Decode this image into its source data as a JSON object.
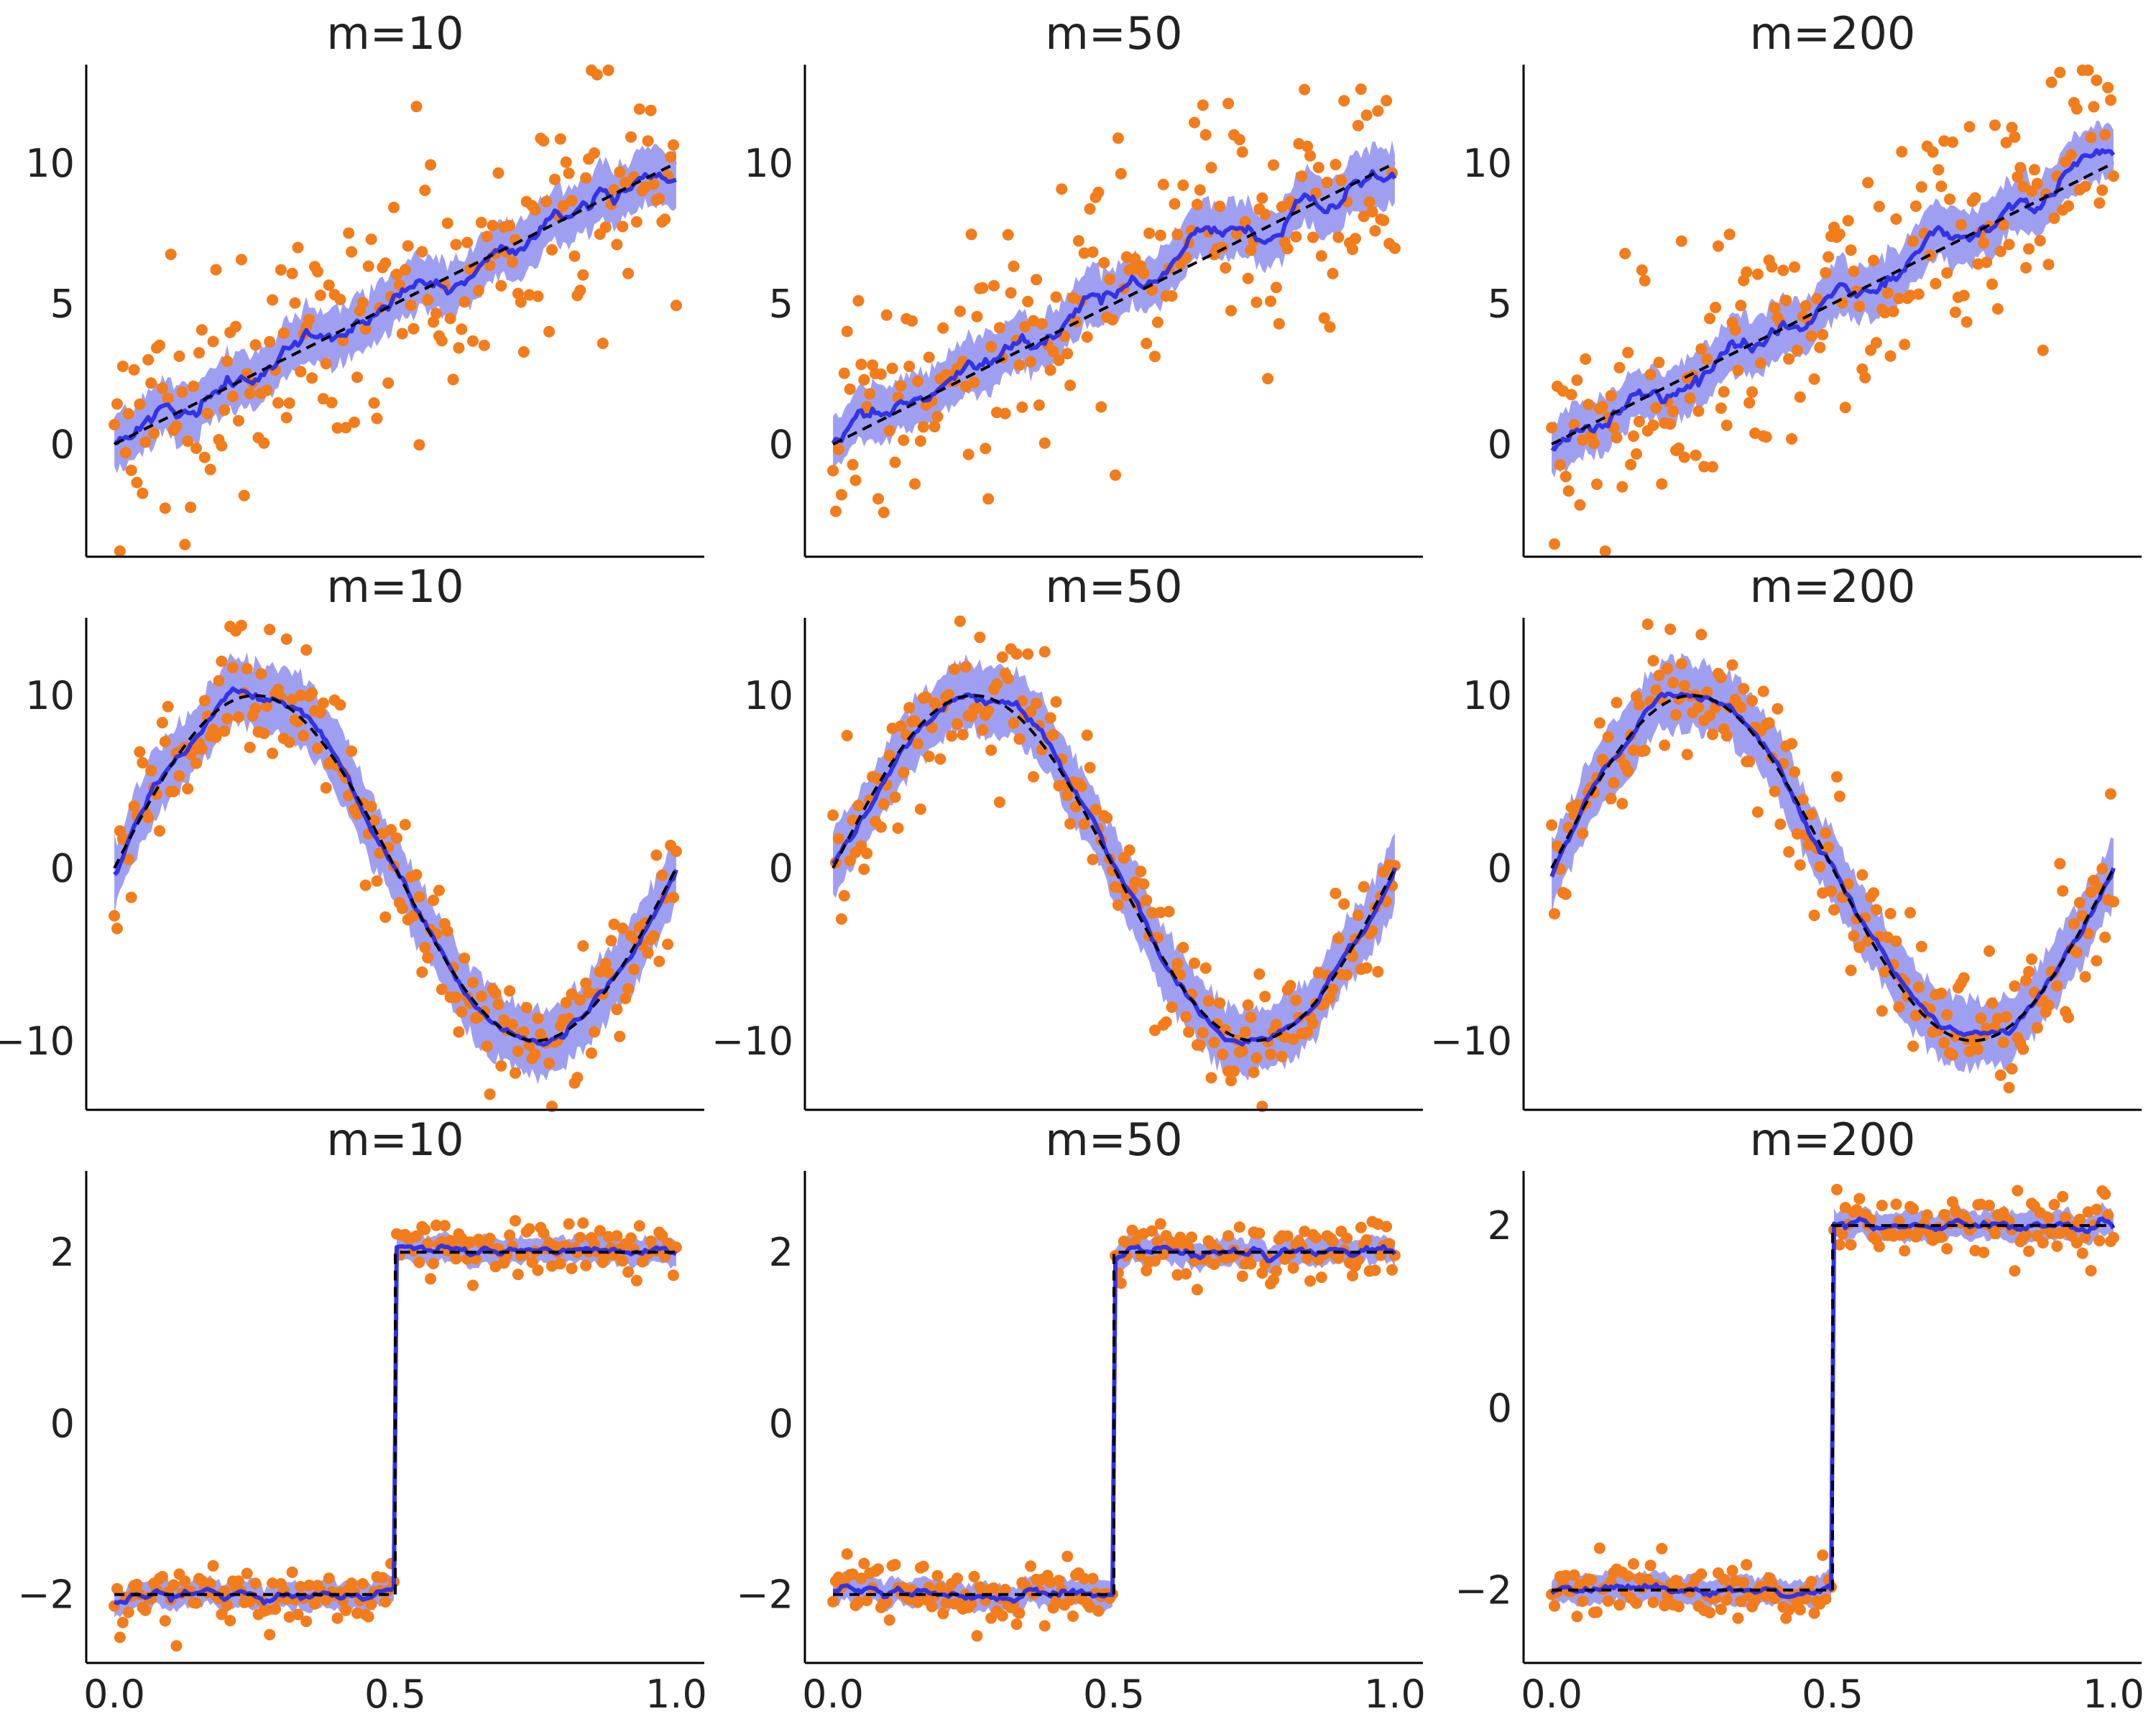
{
  "colors": {
    "points": "#f37c1b",
    "mean_line": "#3333e6",
    "band": "#7f7fee",
    "true_line": "#000000",
    "text": "#222222"
  },
  "chart_data": [
    {
      "type": "scatter",
      "title": "m=10",
      "row": 0,
      "col": 0,
      "function": "linear",
      "ylim": [
        -4,
        13.5
      ],
      "yticks": [
        0,
        5,
        10
      ],
      "ytick_labels": [
        "0",
        "5",
        "10"
      ],
      "xlim": [
        -0.05,
        1.05
      ],
      "xticks": [],
      "xtick_labels": [],
      "series": [
        {
          "name": "observed",
          "kind": "points"
        },
        {
          "name": "BART mean",
          "kind": "line"
        },
        {
          "name": "HDI",
          "kind": "band"
        },
        {
          "name": "true function",
          "kind": "dashed",
          "x": [
            0,
            1
          ],
          "y": [
            0,
            10
          ]
        }
      ]
    },
    {
      "type": "scatter",
      "title": "m=50",
      "row": 0,
      "col": 1,
      "function": "linear",
      "ylim": [
        -4,
        13.5
      ],
      "yticks": [
        0,
        5,
        10
      ],
      "ytick_labels": [
        "0",
        "5",
        "10"
      ],
      "xlim": [
        -0.05,
        1.05
      ],
      "xticks": [],
      "xtick_labels": [],
      "series": [
        {
          "name": "observed",
          "kind": "points"
        },
        {
          "name": "BART mean",
          "kind": "line"
        },
        {
          "name": "HDI",
          "kind": "band"
        },
        {
          "name": "true function",
          "kind": "dashed",
          "x": [
            0,
            1
          ],
          "y": [
            0,
            10
          ]
        }
      ]
    },
    {
      "type": "scatter",
      "title": "m=200",
      "row": 0,
      "col": 2,
      "function": "linear",
      "ylim": [
        -4,
        13.5
      ],
      "yticks": [
        0,
        5,
        10
      ],
      "ytick_labels": [
        "0",
        "5",
        "10"
      ],
      "xlim": [
        -0.05,
        1.05
      ],
      "xticks": [],
      "xtick_labels": [],
      "series": [
        {
          "name": "observed",
          "kind": "points"
        },
        {
          "name": "BART mean",
          "kind": "line"
        },
        {
          "name": "HDI",
          "kind": "band"
        },
        {
          "name": "true function",
          "kind": "dashed",
          "x": [
            0,
            1
          ],
          "y": [
            0,
            10
          ]
        }
      ]
    },
    {
      "type": "scatter",
      "title": "m=10",
      "row": 1,
      "col": 0,
      "function": "sine",
      "ylim": [
        -14,
        14.5
      ],
      "yticks": [
        -10,
        0,
        10
      ],
      "ytick_labels": [
        "−10",
        "0",
        "10"
      ],
      "xlim": [
        -0.05,
        1.05
      ],
      "xticks": [],
      "xtick_labels": [],
      "series": [
        {
          "name": "observed",
          "kind": "points"
        },
        {
          "name": "BART mean",
          "kind": "line"
        },
        {
          "name": "HDI",
          "kind": "band"
        },
        {
          "name": "true function",
          "kind": "dashed",
          "formula": "10*sin(2*pi*x)"
        }
      ]
    },
    {
      "type": "scatter",
      "title": "m=50",
      "row": 1,
      "col": 1,
      "function": "sine",
      "ylim": [
        -14,
        14.5
      ],
      "yticks": [
        -10,
        0,
        10
      ],
      "ytick_labels": [
        "−10",
        "0",
        "10"
      ],
      "xlim": [
        -0.05,
        1.05
      ],
      "xticks": [],
      "xtick_labels": [],
      "series": [
        {
          "name": "observed",
          "kind": "points"
        },
        {
          "name": "BART mean",
          "kind": "line"
        },
        {
          "name": "HDI",
          "kind": "band"
        },
        {
          "name": "true function",
          "kind": "dashed",
          "formula": "10*sin(2*pi*x)"
        }
      ]
    },
    {
      "type": "scatter",
      "title": "m=200",
      "row": 1,
      "col": 2,
      "function": "sine",
      "ylim": [
        -14,
        14.5
      ],
      "yticks": [
        -10,
        0,
        10
      ],
      "ytick_labels": [
        "−10",
        "0",
        "10"
      ],
      "xlim": [
        -0.05,
        1.05
      ],
      "xticks": [],
      "xtick_labels": [],
      "series": [
        {
          "name": "observed",
          "kind": "points"
        },
        {
          "name": "BART mean",
          "kind": "line"
        },
        {
          "name": "HDI",
          "kind": "band"
        },
        {
          "name": "true function",
          "kind": "dashed",
          "formula": "10*sin(2*pi*x)"
        }
      ]
    },
    {
      "type": "scatter",
      "title": "m=10",
      "row": 2,
      "col": 0,
      "function": "step",
      "ylim": [
        -2.8,
        2.95
      ],
      "yticks": [
        -2,
        0,
        2
      ],
      "ytick_labels": [
        "−2",
        "0",
        "2"
      ],
      "xlim": [
        -0.05,
        1.05
      ],
      "xticks": [
        0,
        0.5,
        1
      ],
      "xtick_labels": [
        "0.0",
        "0.5",
        "1.0"
      ],
      "series": [
        {
          "name": "observed",
          "kind": "points"
        },
        {
          "name": "BART mean",
          "kind": "line"
        },
        {
          "name": "HDI",
          "kind": "band"
        },
        {
          "name": "true function",
          "kind": "dashed",
          "x": [
            0,
            0.5,
            0.5,
            1
          ],
          "y": [
            -2,
            -2,
            2,
            2
          ]
        }
      ]
    },
    {
      "type": "scatter",
      "title": "m=50",
      "row": 2,
      "col": 1,
      "function": "step",
      "ylim": [
        -2.8,
        2.95
      ],
      "yticks": [
        -2,
        0,
        2
      ],
      "ytick_labels": [
        "−2",
        "0",
        "2"
      ],
      "xlim": [
        -0.05,
        1.05
      ],
      "xticks": [
        0,
        0.5,
        1
      ],
      "xtick_labels": [
        "0.0",
        "0.5",
        "1.0"
      ],
      "series": [
        {
          "name": "observed",
          "kind": "points"
        },
        {
          "name": "BART mean",
          "kind": "line"
        },
        {
          "name": "HDI",
          "kind": "band"
        },
        {
          "name": "true function",
          "kind": "dashed",
          "x": [
            0,
            0.5,
            0.5,
            1
          ],
          "y": [
            -2,
            -2,
            2,
            2
          ]
        }
      ]
    },
    {
      "type": "scatter",
      "title": "m=200",
      "row": 2,
      "col": 2,
      "function": "step",
      "ylim": [
        -2.8,
        2.6
      ],
      "yticks": [
        -2,
        0,
        2
      ],
      "ytick_labels": [
        "−2",
        "0",
        "2"
      ],
      "xlim": [
        -0.05,
        1.05
      ],
      "xticks": [
        0,
        0.5,
        1
      ],
      "xtick_labels": [
        "0.0",
        "0.5",
        "1.0"
      ],
      "series": [
        {
          "name": "observed",
          "kind": "points"
        },
        {
          "name": "BART mean",
          "kind": "line"
        },
        {
          "name": "HDI",
          "kind": "band"
        },
        {
          "name": "true function",
          "kind": "dashed",
          "x": [
            0,
            0.5,
            0.5,
            1
          ],
          "y": [
            -2,
            -2,
            2,
            2
          ]
        }
      ]
    }
  ]
}
